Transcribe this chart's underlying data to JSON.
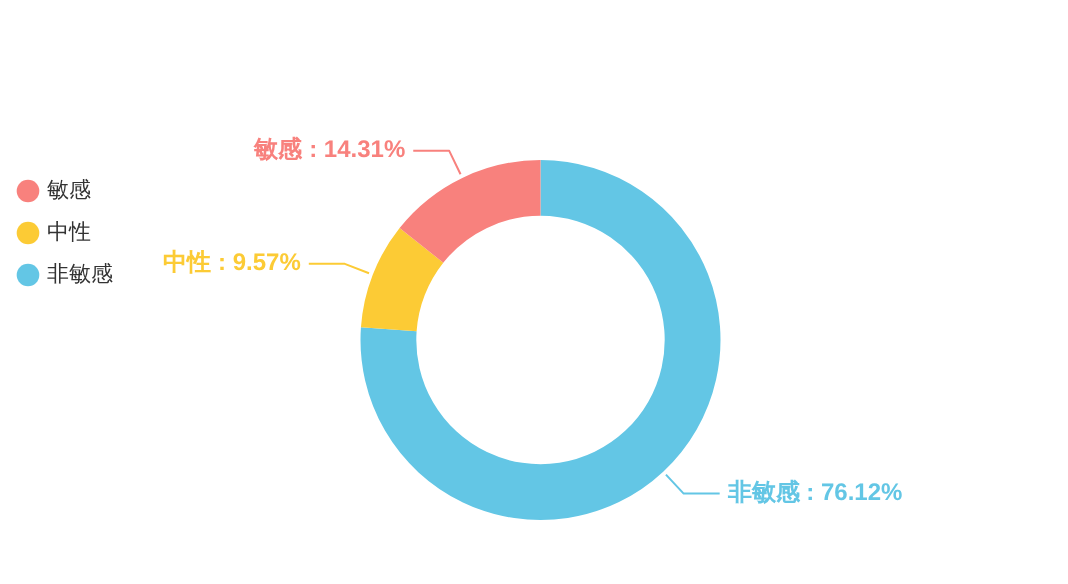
{
  "chart_data": {
    "type": "donut",
    "categories": [
      "敏感",
      "中性",
      "非敏感"
    ],
    "values": [
      14.31,
      9.57,
      76.12
    ],
    "colors": [
      "#f8817d",
      "#fccb35",
      "#63c6e5"
    ],
    "value_labels": [
      "敏感 : 14.31%",
      "中性 : 9.57%",
      "非敏感 : 76.12%"
    ],
    "legend": "top left"
  }
}
